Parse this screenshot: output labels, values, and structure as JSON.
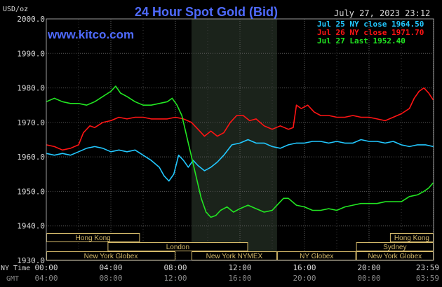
{
  "chart_data": {
    "type": "line",
    "title": "24 Hour Spot Gold (Bid)",
    "unit_label": "USD/oz",
    "source_url": "www.kitco.com",
    "timestamp": "July 27, 2023 23:12",
    "ylim": [
      1930,
      2000
    ],
    "xlim": [
      0,
      24
    ],
    "grid": true,
    "legend_position": "top-right",
    "yticks": [
      {
        "value": 2000,
        "label": "2000.0"
      },
      {
        "value": 1990,
        "label": "1990.0"
      },
      {
        "value": 1980,
        "label": "1980.0"
      },
      {
        "value": 1970,
        "label": "1970.0"
      },
      {
        "value": 1960,
        "label": "1960.0"
      },
      {
        "value": 1950,
        "label": "1950.0"
      },
      {
        "value": 1940,
        "label": "1940.0"
      },
      {
        "value": 1930,
        "label": "1930.0"
      }
    ],
    "xticks_ny": [
      {
        "hour": 0,
        "label": "00:00"
      },
      {
        "hour": 4,
        "label": "04:00"
      },
      {
        "hour": 8,
        "label": "08:00"
      },
      {
        "hour": 12,
        "label": "12:00"
      },
      {
        "hour": 16,
        "label": "16:00"
      },
      {
        "hour": 20,
        "label": "20:00"
      },
      {
        "hour": 23.98,
        "label": "23:59"
      }
    ],
    "xticks_gmt": [
      {
        "hour": 0,
        "label": "04:00"
      },
      {
        "hour": 4,
        "label": "08:00"
      },
      {
        "hour": 8,
        "label": "12:00"
      },
      {
        "hour": 12,
        "label": "16:00"
      },
      {
        "hour": 16,
        "label": "20:00"
      },
      {
        "hour": 20,
        "label": "00:00"
      },
      {
        "hour": 23.98,
        "label": "03:59"
      }
    ],
    "row_label_ny": "NY Time",
    "row_label_gmt": "GMT",
    "shaded_region": {
      "start_hour": 9.0,
      "end_hour": 14.3
    },
    "sessions": [
      {
        "name": "Hong Kong",
        "start": 0,
        "end": 5.8,
        "row": 0
      },
      {
        "name": "London",
        "start": 3.8,
        "end": 12.5,
        "row": 1
      },
      {
        "name": "New York Globex",
        "start": 0,
        "end": 8.0,
        "row": 2
      },
      {
        "name": "New York NYMEX",
        "start": 9.0,
        "end": 14.3,
        "row": 2
      },
      {
        "name": "NY Globex",
        "start": 14.3,
        "end": 19.2,
        "row": 2
      },
      {
        "name": "Hong Kong",
        "start": 21.3,
        "end": 24,
        "row": 0
      },
      {
        "name": "Sydney",
        "start": 19.2,
        "end": 24,
        "row": 1
      },
      {
        "name": "New York Globex",
        "start": 19.2,
        "end": 24,
        "row": 2
      }
    ],
    "series": [
      {
        "name": "Jul 25 NY close 1964.50",
        "color": "#22c8ff",
        "points": [
          [
            0,
            1961
          ],
          [
            0.5,
            1960.5
          ],
          [
            1,
            1961
          ],
          [
            1.5,
            1960.5
          ],
          [
            2,
            1961.5
          ],
          [
            2.5,
            1962.5
          ],
          [
            3,
            1963
          ],
          [
            3.5,
            1962.5
          ],
          [
            4,
            1961.5
          ],
          [
            4.5,
            1962
          ],
          [
            5,
            1961.5
          ],
          [
            5.5,
            1962
          ],
          [
            6,
            1960.5
          ],
          [
            6.5,
            1959
          ],
          [
            7,
            1957
          ],
          [
            7.3,
            1954.5
          ],
          [
            7.6,
            1953
          ],
          [
            7.9,
            1955
          ],
          [
            8.2,
            1960.5
          ],
          [
            8.5,
            1959
          ],
          [
            8.8,
            1957
          ],
          [
            9.1,
            1959
          ],
          [
            9.4,
            1957.5
          ],
          [
            9.8,
            1956
          ],
          [
            10.2,
            1957
          ],
          [
            10.6,
            1958.5
          ],
          [
            11,
            1960.5
          ],
          [
            11.5,
            1963.5
          ],
          [
            12,
            1964
          ],
          [
            12.5,
            1965
          ],
          [
            13,
            1964
          ],
          [
            13.5,
            1964
          ],
          [
            14,
            1963
          ],
          [
            14.5,
            1962.5
          ],
          [
            15,
            1963.5
          ],
          [
            15.5,
            1964
          ],
          [
            16,
            1964
          ],
          [
            16.5,
            1964.5
          ],
          [
            17,
            1964.5
          ],
          [
            17.5,
            1964
          ],
          [
            18,
            1964.5
          ],
          [
            18.5,
            1964
          ],
          [
            19,
            1964
          ],
          [
            19.5,
            1965
          ],
          [
            20,
            1964.5
          ],
          [
            20.5,
            1964.5
          ],
          [
            21,
            1964
          ],
          [
            21.5,
            1964.5
          ],
          [
            22,
            1963.5
          ],
          [
            22.5,
            1963
          ],
          [
            23,
            1963.5
          ],
          [
            23.5,
            1963.5
          ],
          [
            23.98,
            1963
          ]
        ]
      },
      {
        "name": "Jul 26 NY close 1971.70",
        "color": "#ff1414",
        "points": [
          [
            0,
            1963.5
          ],
          [
            0.5,
            1963
          ],
          [
            1,
            1962
          ],
          [
            1.5,
            1962.5
          ],
          [
            2,
            1963.5
          ],
          [
            2.3,
            1967
          ],
          [
            2.7,
            1969
          ],
          [
            3,
            1968.5
          ],
          [
            3.5,
            1970
          ],
          [
            4,
            1970.5
          ],
          [
            4.5,
            1971.5
          ],
          [
            5,
            1971
          ],
          [
            5.5,
            1971.5
          ],
          [
            6,
            1971.5
          ],
          [
            6.5,
            1971
          ],
          [
            7,
            1971
          ],
          [
            7.5,
            1971
          ],
          [
            8,
            1971.5
          ],
          [
            8.5,
            1971
          ],
          [
            9,
            1970
          ],
          [
            9.4,
            1968
          ],
          [
            9.8,
            1966
          ],
          [
            10.2,
            1967.5
          ],
          [
            10.6,
            1966
          ],
          [
            11,
            1967
          ],
          [
            11.4,
            1970
          ],
          [
            11.8,
            1972
          ],
          [
            12.2,
            1972
          ],
          [
            12.6,
            1970.5
          ],
          [
            13,
            1971
          ],
          [
            13.5,
            1969
          ],
          [
            14,
            1968
          ],
          [
            14.5,
            1969
          ],
          [
            15,
            1968
          ],
          [
            15.3,
            1968.5
          ],
          [
            15.5,
            1975
          ],
          [
            15.8,
            1974
          ],
          [
            16.2,
            1975
          ],
          [
            16.6,
            1973
          ],
          [
            17,
            1972
          ],
          [
            17.5,
            1972
          ],
          [
            18,
            1971.5
          ],
          [
            18.5,
            1971.5
          ],
          [
            19,
            1972
          ],
          [
            19.5,
            1971.5
          ],
          [
            20,
            1971.5
          ],
          [
            20.5,
            1971
          ],
          [
            21,
            1970.5
          ],
          [
            21.5,
            1971.5
          ],
          [
            22,
            1972.5
          ],
          [
            22.5,
            1974
          ],
          [
            22.8,
            1977
          ],
          [
            23.1,
            1979
          ],
          [
            23.4,
            1980
          ],
          [
            23.7,
            1978.5
          ],
          [
            23.98,
            1976.5
          ]
        ]
      },
      {
        "name": "Jul 27 Last 1952.40",
        "color": "#22e622",
        "points": [
          [
            0,
            1976
          ],
          [
            0.5,
            1977
          ],
          [
            1,
            1976
          ],
          [
            1.5,
            1975.5
          ],
          [
            2,
            1975.5
          ],
          [
            2.5,
            1975
          ],
          [
            3,
            1976
          ],
          [
            3.5,
            1977.5
          ],
          [
            4,
            1979
          ],
          [
            4.3,
            1980.5
          ],
          [
            4.6,
            1978.5
          ],
          [
            5,
            1977.5
          ],
          [
            5.5,
            1976
          ],
          [
            6,
            1975
          ],
          [
            6.5,
            1975
          ],
          [
            7,
            1975.5
          ],
          [
            7.5,
            1976
          ],
          [
            7.8,
            1977
          ],
          [
            8.1,
            1975
          ],
          [
            8.4,
            1972
          ],
          [
            8.7,
            1966
          ],
          [
            9,
            1960
          ],
          [
            9.3,
            1954
          ],
          [
            9.6,
            1948
          ],
          [
            9.9,
            1944
          ],
          [
            10.2,
            1942.5
          ],
          [
            10.5,
            1943
          ],
          [
            10.8,
            1944.5
          ],
          [
            11.2,
            1945.5
          ],
          [
            11.6,
            1944
          ],
          [
            12,
            1945
          ],
          [
            12.5,
            1946
          ],
          [
            13,
            1945
          ],
          [
            13.5,
            1944
          ],
          [
            14,
            1944.5
          ],
          [
            14.3,
            1946
          ],
          [
            14.7,
            1948
          ],
          [
            15,
            1948
          ],
          [
            15.5,
            1946
          ],
          [
            16,
            1945.5
          ],
          [
            16.5,
            1944.5
          ],
          [
            17,
            1944.5
          ],
          [
            17.5,
            1945
          ],
          [
            18,
            1944.5
          ],
          [
            18.5,
            1945.5
          ],
          [
            19,
            1946
          ],
          [
            19.5,
            1946.5
          ],
          [
            20,
            1946.5
          ],
          [
            20.5,
            1946.5
          ],
          [
            21,
            1947
          ],
          [
            21.5,
            1947
          ],
          [
            22,
            1947
          ],
          [
            22.5,
            1948.5
          ],
          [
            23,
            1949
          ],
          [
            23.4,
            1950
          ],
          [
            23.7,
            1951
          ],
          [
            23.98,
            1952.5
          ]
        ]
      }
    ]
  }
}
